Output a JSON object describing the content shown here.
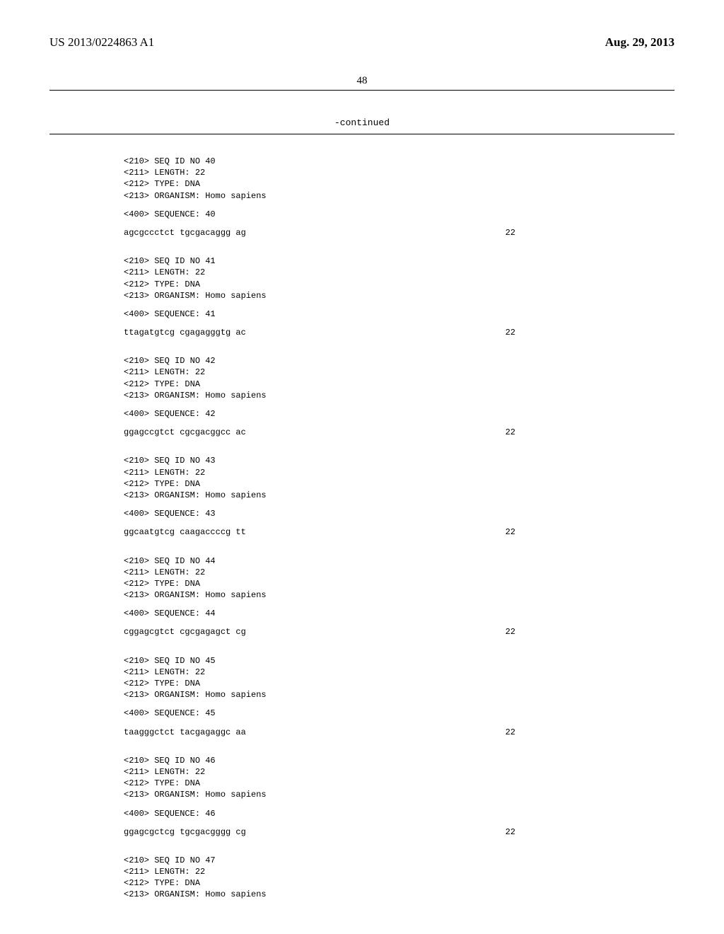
{
  "header": {
    "pub_number": "US 2013/0224863 A1",
    "pub_date": "Aug. 29, 2013"
  },
  "page_number": "48",
  "continued_label": "-continued",
  "sequences": [
    {
      "id": "40",
      "length": "22",
      "type": "DNA",
      "organism": "Homo sapiens",
      "sequence_label": "40",
      "sequence": "agcgccctct tgcgacaggg ag",
      "seq_len": "22"
    },
    {
      "id": "41",
      "length": "22",
      "type": "DNA",
      "organism": "Homo sapiens",
      "sequence_label": "41",
      "sequence": "ttagatgtcg cgagagggtg ac",
      "seq_len": "22"
    },
    {
      "id": "42",
      "length": "22",
      "type": "DNA",
      "organism": "Homo sapiens",
      "sequence_label": "42",
      "sequence": "ggagccgtct cgcgacggcc ac",
      "seq_len": "22"
    },
    {
      "id": "43",
      "length": "22",
      "type": "DNA",
      "organism": "Homo sapiens",
      "sequence_label": "43",
      "sequence": "ggcaatgtcg caagaccccg tt",
      "seq_len": "22"
    },
    {
      "id": "44",
      "length": "22",
      "type": "DNA",
      "organism": "Homo sapiens",
      "sequence_label": "44",
      "sequence": "cggagcgtct cgcgagagct cg",
      "seq_len": "22"
    },
    {
      "id": "45",
      "length": "22",
      "type": "DNA",
      "organism": "Homo sapiens",
      "sequence_label": "45",
      "sequence": "taagggctct tacgagaggc aa",
      "seq_len": "22"
    },
    {
      "id": "46",
      "length": "22",
      "type": "DNA",
      "organism": "Homo sapiens",
      "sequence_label": "46",
      "sequence": "ggagcgctcg tgcgacgggg cg",
      "seq_len": "22"
    },
    {
      "id": "47",
      "length": "22",
      "type": "DNA",
      "organism": "Homo sapiens",
      "sequence_label": null,
      "sequence": null,
      "seq_len": null
    }
  ],
  "labels": {
    "seq_id": "<210> SEQ ID NO ",
    "length": "<211> LENGTH: ",
    "type": "<212> TYPE: ",
    "organism": "<213> ORGANISM: ",
    "sequence": "<400> SEQUENCE: "
  }
}
